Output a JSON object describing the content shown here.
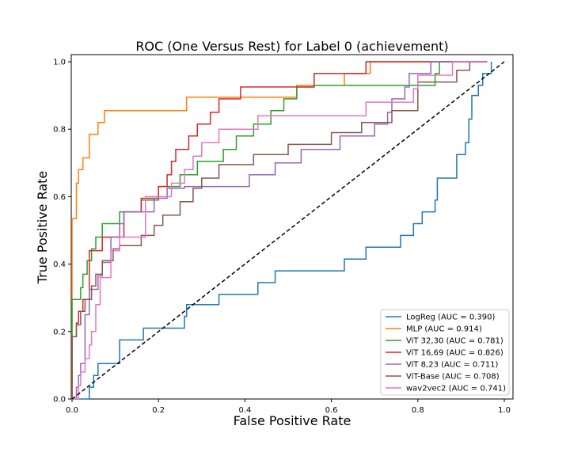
{
  "chart_data": {
    "type": "line",
    "title": "ROC (One Versus Rest) for Label 0 (achievement)",
    "xlabel": "False Positive Rate",
    "ylabel": "True Positive Rate",
    "xlim": [
      0.0,
      1.0
    ],
    "ylim": [
      0.0,
      1.0
    ],
    "xticks": [
      "0.0",
      "0.2",
      "0.4",
      "0.6",
      "0.8",
      "1.0"
    ],
    "yticks": [
      "0.0",
      "0.2",
      "0.4",
      "0.6",
      "0.8",
      "1.0"
    ],
    "grid": false,
    "legend_position": "lower right",
    "diagonal": {
      "x": [
        0,
        1
      ],
      "y": [
        0,
        1
      ],
      "style": "dashed",
      "color": "#000000"
    },
    "series": [
      {
        "name": "LogReg (AUC = 0.390)",
        "color": "#1f77b4",
        "x": [
          0.0,
          0.04,
          0.04,
          0.05,
          0.05,
          0.06,
          0.06,
          0.11,
          0.11,
          0.165,
          0.165,
          0.26,
          0.26,
          0.265,
          0.265,
          0.34,
          0.34,
          0.43,
          0.43,
          0.47,
          0.47,
          0.63,
          0.63,
          0.68,
          0.68,
          0.76,
          0.76,
          0.79,
          0.79,
          0.81,
          0.81,
          0.84,
          0.84,
          0.845,
          0.845,
          0.89,
          0.89,
          0.91,
          0.91,
          0.918,
          0.918,
          0.925,
          0.925,
          0.94,
          0.94,
          0.95,
          0.95,
          0.97,
          0.97
        ],
        "y": [
          0.0,
          0.0,
          0.035,
          0.035,
          0.07,
          0.07,
          0.105,
          0.105,
          0.175,
          0.175,
          0.21,
          0.21,
          0.245,
          0.245,
          0.28,
          0.28,
          0.31,
          0.31,
          0.345,
          0.345,
          0.38,
          0.38,
          0.415,
          0.415,
          0.45,
          0.45,
          0.485,
          0.485,
          0.52,
          0.52,
          0.555,
          0.555,
          0.59,
          0.59,
          0.655,
          0.655,
          0.725,
          0.725,
          0.76,
          0.76,
          0.83,
          0.83,
          0.9,
          0.9,
          0.93,
          0.93,
          0.965,
          0.965,
          1.0
        ]
      },
      {
        "name": "MLP (AUC = 0.914)",
        "color": "#ff7f0e",
        "x": [
          0.0,
          0.0,
          0.01,
          0.01,
          0.015,
          0.015,
          0.025,
          0.025,
          0.04,
          0.04,
          0.06,
          0.06,
          0.075,
          0.075,
          0.265,
          0.265,
          0.52,
          0.52,
          0.63,
          0.63,
          0.69,
          0.69,
          0.96
        ],
        "y": [
          0.0,
          0.535,
          0.535,
          0.64,
          0.64,
          0.68,
          0.68,
          0.715,
          0.715,
          0.785,
          0.785,
          0.82,
          0.82,
          0.855,
          0.855,
          0.895,
          0.895,
          0.93,
          0.93,
          0.965,
          0.965,
          1.0,
          1.0
        ]
      },
      {
        "name": "ViT 32,30 (AUC = 0.781)",
        "color": "#2ca02c",
        "x": [
          0.0,
          0.0,
          0.02,
          0.02,
          0.025,
          0.025,
          0.035,
          0.035,
          0.045,
          0.045,
          0.055,
          0.055,
          0.07,
          0.07,
          0.11,
          0.11,
          0.16,
          0.16,
          0.2,
          0.2,
          0.25,
          0.25,
          0.29,
          0.29,
          0.35,
          0.35,
          0.38,
          0.38,
          0.42,
          0.42,
          0.46,
          0.46,
          0.49,
          0.49,
          0.52,
          0.52,
          0.56,
          0.56,
          0.68,
          0.68,
          0.84,
          0.84,
          0.85,
          0.85,
          0.96
        ],
        "y": [
          0.0,
          0.295,
          0.295,
          0.33,
          0.33,
          0.37,
          0.37,
          0.41,
          0.41,
          0.445,
          0.445,
          0.48,
          0.48,
          0.52,
          0.52,
          0.555,
          0.555,
          0.59,
          0.59,
          0.63,
          0.63,
          0.665,
          0.665,
          0.705,
          0.705,
          0.74,
          0.74,
          0.78,
          0.78,
          0.815,
          0.815,
          0.855,
          0.855,
          0.89,
          0.89,
          0.925,
          0.925,
          0.93,
          0.93,
          0.93,
          0.93,
          0.965,
          0.965,
          1.0,
          1.0
        ]
      },
      {
        "name": "ViT 16,69 (AUC = 0.826)",
        "color": "#d62728",
        "x": [
          0.0,
          0.0,
          0.01,
          0.01,
          0.015,
          0.015,
          0.025,
          0.025,
          0.04,
          0.04,
          0.07,
          0.07,
          0.095,
          0.095,
          0.12,
          0.12,
          0.15,
          0.15,
          0.16,
          0.16,
          0.19,
          0.19,
          0.2,
          0.2,
          0.22,
          0.22,
          0.23,
          0.23,
          0.24,
          0.24,
          0.27,
          0.27,
          0.29,
          0.29,
          0.3,
          0.3,
          0.32,
          0.32,
          0.34,
          0.34,
          0.39,
          0.39,
          0.56,
          0.56,
          0.68,
          0.68,
          0.73,
          0.73,
          0.96
        ],
        "y": [
          0.0,
          0.185,
          0.185,
          0.225,
          0.225,
          0.26,
          0.26,
          0.295,
          0.295,
          0.44,
          0.44,
          0.48,
          0.48,
          0.48,
          0.48,
          0.555,
          0.555,
          0.555,
          0.555,
          0.595,
          0.595,
          0.595,
          0.595,
          0.63,
          0.63,
          0.665,
          0.665,
          0.705,
          0.705,
          0.74,
          0.74,
          0.78,
          0.78,
          0.815,
          0.815,
          0.815,
          0.815,
          0.85,
          0.85,
          0.89,
          0.89,
          0.925,
          0.925,
          0.965,
          0.965,
          1.0,
          1.0,
          1.0,
          1.0
        ]
      },
      {
        "name": "ViT 8,23 (AUC = 0.711)",
        "color": "#9467bd",
        "x": [
          0.0,
          0.0,
          0.01,
          0.01,
          0.015,
          0.015,
          0.02,
          0.02,
          0.03,
          0.03,
          0.04,
          0.04,
          0.06,
          0.06,
          0.07,
          0.07,
          0.09,
          0.09,
          0.11,
          0.11,
          0.12,
          0.12,
          0.19,
          0.19,
          0.22,
          0.22,
          0.26,
          0.26,
          0.41,
          0.41,
          0.47,
          0.47,
          0.53,
          0.53,
          0.62,
          0.62,
          0.7,
          0.7,
          0.73,
          0.73,
          0.74,
          0.74,
          0.77,
          0.77,
          0.78,
          0.78,
          0.83,
          0.83,
          0.88,
          0.88,
          0.96
        ],
        "y": [
          0.0,
          0.0,
          0.0,
          0.035,
          0.035,
          0.07,
          0.07,
          0.105,
          0.105,
          0.25,
          0.25,
          0.325,
          0.325,
          0.365,
          0.365,
          0.405,
          0.405,
          0.48,
          0.48,
          0.52,
          0.52,
          0.555,
          0.555,
          0.595,
          0.595,
          0.625,
          0.625,
          0.63,
          0.63,
          0.665,
          0.665,
          0.7,
          0.7,
          0.74,
          0.74,
          0.78,
          0.78,
          0.815,
          0.815,
          0.85,
          0.85,
          0.89,
          0.89,
          0.925,
          0.925,
          0.965,
          0.965,
          1.0,
          1.0,
          1.0,
          1.0
        ]
      },
      {
        "name": "ViT-Base (AUC = 0.708)",
        "color": "#8c564b",
        "x": [
          0.0,
          0.0,
          0.01,
          0.01,
          0.02,
          0.02,
          0.03,
          0.03,
          0.045,
          0.045,
          0.055,
          0.055,
          0.07,
          0.07,
          0.085,
          0.085,
          0.095,
          0.095,
          0.11,
          0.11,
          0.16,
          0.16,
          0.19,
          0.19,
          0.21,
          0.21,
          0.25,
          0.25,
          0.28,
          0.28,
          0.3,
          0.3,
          0.34,
          0.34,
          0.42,
          0.42,
          0.5,
          0.5,
          0.6,
          0.6,
          0.67,
          0.67,
          0.74,
          0.74,
          0.8,
          0.8,
          0.89,
          0.89,
          0.92,
          0.92,
          0.96
        ],
        "y": [
          0.0,
          0.185,
          0.185,
          0.22,
          0.22,
          0.26,
          0.26,
          0.295,
          0.295,
          0.335,
          0.335,
          0.37,
          0.37,
          0.41,
          0.41,
          0.41,
          0.41,
          0.445,
          0.445,
          0.455,
          0.455,
          0.485,
          0.485,
          0.515,
          0.515,
          0.545,
          0.545,
          0.585,
          0.585,
          0.625,
          0.625,
          0.655,
          0.655,
          0.695,
          0.695,
          0.725,
          0.725,
          0.755,
          0.755,
          0.79,
          0.79,
          0.82,
          0.82,
          0.855,
          0.855,
          0.94,
          0.94,
          0.975,
          0.975,
          1.0,
          1.0
        ]
      },
      {
        "name": "wav2vec2 (AUC = 0.741)",
        "color": "#e377c2",
        "x": [
          0.0,
          0.0,
          0.015,
          0.015,
          0.02,
          0.02,
          0.03,
          0.03,
          0.04,
          0.04,
          0.045,
          0.045,
          0.055,
          0.055,
          0.065,
          0.065,
          0.09,
          0.09,
          0.11,
          0.11,
          0.17,
          0.17,
          0.19,
          0.19,
          0.23,
          0.23,
          0.26,
          0.26,
          0.28,
          0.28,
          0.3,
          0.3,
          0.34,
          0.34,
          0.43,
          0.43,
          0.5,
          0.5,
          0.68,
          0.68,
          0.79,
          0.79,
          0.8,
          0.8,
          0.88,
          0.88,
          0.9,
          0.9,
          0.96
        ],
        "y": [
          0.0,
          0.0,
          0.0,
          0.04,
          0.04,
          0.08,
          0.08,
          0.12,
          0.12,
          0.16,
          0.16,
          0.2,
          0.2,
          0.28,
          0.28,
          0.36,
          0.36,
          0.44,
          0.44,
          0.48,
          0.48,
          0.6,
          0.6,
          0.6,
          0.6,
          0.64,
          0.64,
          0.68,
          0.68,
          0.72,
          0.72,
          0.76,
          0.76,
          0.8,
          0.8,
          0.84,
          0.84,
          0.84,
          0.84,
          0.88,
          0.88,
          0.92,
          0.92,
          0.96,
          0.96,
          1.0,
          1.0,
          1.0,
          1.0
        ]
      }
    ]
  }
}
